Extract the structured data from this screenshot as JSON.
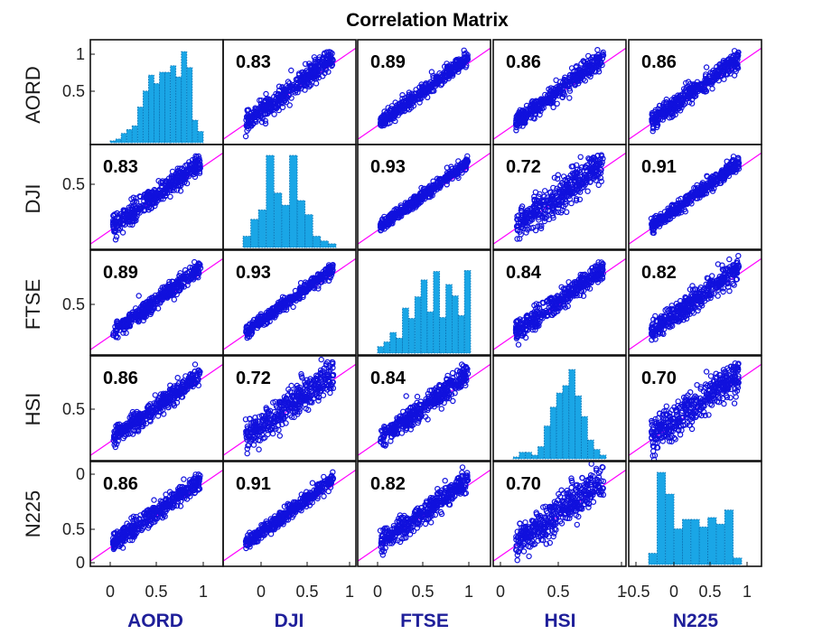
{
  "chart_data": {
    "type": "scatter",
    "title": "Correlation Matrix",
    "variables": [
      "AORD",
      "DJI",
      "FTSE",
      "HSI",
      "N225"
    ],
    "correlations": [
      [
        null,
        0.83,
        0.89,
        0.86,
        0.86
      ],
      [
        0.83,
        null,
        0.93,
        0.72,
        0.91
      ],
      [
        0.89,
        0.93,
        null,
        0.84,
        0.82
      ],
      [
        0.86,
        0.72,
        0.84,
        null,
        0.7
      ],
      [
        0.86,
        0.91,
        0.82,
        0.7,
        null
      ]
    ],
    "correlation_labels": [
      [
        "",
        "0.83",
        "0.89",
        "0.86",
        "0.86"
      ],
      [
        "0.83",
        "",
        "0.93",
        "0.72",
        "0.91"
      ],
      [
        "0.89",
        "0.93",
        "",
        "0.84",
        "0.82"
      ],
      [
        "0.86",
        "0.72",
        "0.84",
        "",
        "0.70"
      ],
      [
        "0.86",
        "0.91",
        "0.82",
        "0.70",
        ""
      ]
    ],
    "x_tick_labels": [
      [
        "0",
        "0.5",
        "1"
      ],
      [
        "0",
        "0.5",
        "1"
      ],
      [
        "0",
        "0.5",
        "1"
      ],
      [
        "0",
        "0.5",
        "1"
      ],
      [
        "-0.5",
        "0",
        "0.5",
        "1"
      ]
    ],
    "y_tick_labels": [
      [
        "1",
        "0.5"
      ],
      [
        "0.5"
      ],
      [
        "0.5"
      ],
      [
        "0.5"
      ],
      [
        "0",
        "0.5",
        "0"
      ]
    ],
    "histogram_heights": [
      [
        0.02,
        0.04,
        0.1,
        0.14,
        0.18,
        0.38,
        0.55,
        0.72,
        0.63,
        0.75,
        0.75,
        0.82,
        0.7,
        0.97,
        0.8,
        0.24,
        0.12
      ],
      [
        0.12,
        0.3,
        0.4,
        0.98,
        0.58,
        0.45,
        0.98,
        0.5,
        0.35,
        0.12,
        0.07,
        0.04
      ],
      [
        0.07,
        0.12,
        0.22,
        0.16,
        0.48,
        0.37,
        0.6,
        0.78,
        0.44,
        0.87,
        0.38,
        0.73,
        0.61,
        0.4,
        0.88
      ],
      [
        0.02,
        0.07,
        0.07,
        0.04,
        0.13,
        0.35,
        0.55,
        0.7,
        0.78,
        0.95,
        0.67,
        0.45,
        0.2,
        0.1,
        0.04
      ],
      [
        0.12,
        0.98,
        0.75,
        0.38,
        0.48,
        0.48,
        0.4,
        0.5,
        0.43,
        0.58,
        0.07
      ]
    ],
    "grid": false,
    "point_color": "#1111dd",
    "fit_line_color": "#ff00ff",
    "histogram_color": "#1aa6e6"
  }
}
